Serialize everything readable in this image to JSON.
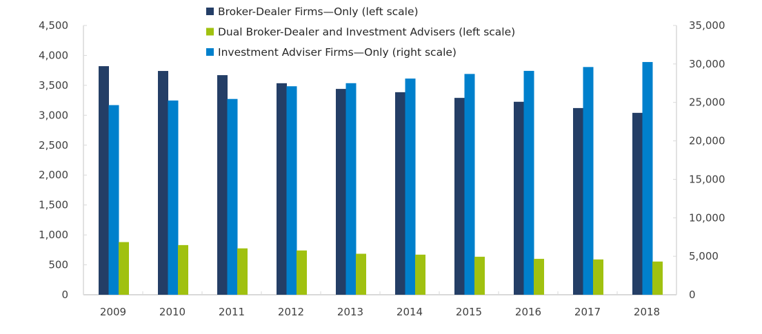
{
  "chart_data": {
    "type": "bar",
    "categories": [
      "2009",
      "2010",
      "2011",
      "2012",
      "2013",
      "2014",
      "2015",
      "2016",
      "2017",
      "2018"
    ],
    "series": [
      {
        "name": "Broker-Dealer Firms—Only (left scale)",
        "axis": "left",
        "color": "#243e66",
        "values": [
          3820,
          3740,
          3670,
          3535,
          3440,
          3385,
          3290,
          3225,
          3120,
          3040
        ]
      },
      {
        "name": "Investment Adviser Firms—Only (right scale)",
        "axis": "right",
        "color": "#0080cc",
        "values": [
          24650,
          25250,
          25450,
          27100,
          27500,
          28100,
          28700,
          29100,
          29600,
          30250
        ]
      },
      {
        "name": "Dual Broker-Dealer and Investment Advisers (left scale)",
        "axis": "left",
        "color": "#a0c110",
        "values": [
          880,
          830,
          775,
          740,
          685,
          670,
          635,
          600,
          590,
          555
        ]
      }
    ],
    "legend_order": [
      0,
      2,
      1
    ],
    "left_axis": {
      "ylim": [
        0,
        4500
      ],
      "ticks": [
        "0",
        "500",
        "1,000",
        "1,500",
        "2,000",
        "2,500",
        "3,000",
        "3,500",
        "4,000",
        "4,500"
      ]
    },
    "right_axis": {
      "ylim": [
        0,
        35000
      ],
      "ticks": [
        "0",
        "5,000",
        "10,000",
        "15,000",
        "20,000",
        "25,000",
        "30,000",
        "35,000"
      ]
    },
    "grid": false,
    "legend_placement": "top-center"
  }
}
